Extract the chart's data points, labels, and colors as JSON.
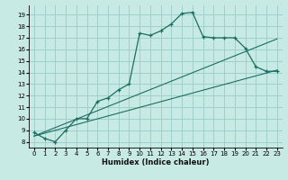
{
  "title": "",
  "xlabel": "Humidex (Indice chaleur)",
  "background_color": "#c8eae4",
  "grid_color": "#a0d0cc",
  "line_color": "#1a6e60",
  "xlim": [
    -0.5,
    23.5
  ],
  "ylim": [
    7.5,
    19.8
  ],
  "xticks": [
    0,
    1,
    2,
    3,
    4,
    5,
    6,
    7,
    8,
    9,
    10,
    11,
    12,
    13,
    14,
    15,
    16,
    17,
    18,
    19,
    20,
    21,
    22,
    23
  ],
  "yticks": [
    8,
    9,
    10,
    11,
    12,
    13,
    14,
    15,
    16,
    17,
    18,
    19
  ],
  "main_x": [
    0,
    1,
    2,
    3,
    4,
    5,
    6,
    7,
    8,
    9,
    10,
    11,
    12,
    13,
    14,
    15,
    16,
    17,
    18,
    19,
    20,
    21,
    22,
    23
  ],
  "main_y": [
    8.8,
    8.3,
    8.0,
    9.0,
    10.0,
    10.0,
    11.5,
    11.8,
    12.5,
    13.0,
    17.4,
    17.2,
    17.6,
    18.2,
    19.1,
    19.2,
    17.1,
    17.0,
    17.0,
    17.0,
    16.1,
    14.5,
    14.1,
    14.1
  ],
  "line2_x": [
    0,
    23
  ],
  "line2_y": [
    8.5,
    14.2
  ],
  "line3_x": [
    0,
    23
  ],
  "line3_y": [
    8.5,
    16.9
  ],
  "xlabel_fontsize": 6.0,
  "tick_fontsize": 5.0
}
